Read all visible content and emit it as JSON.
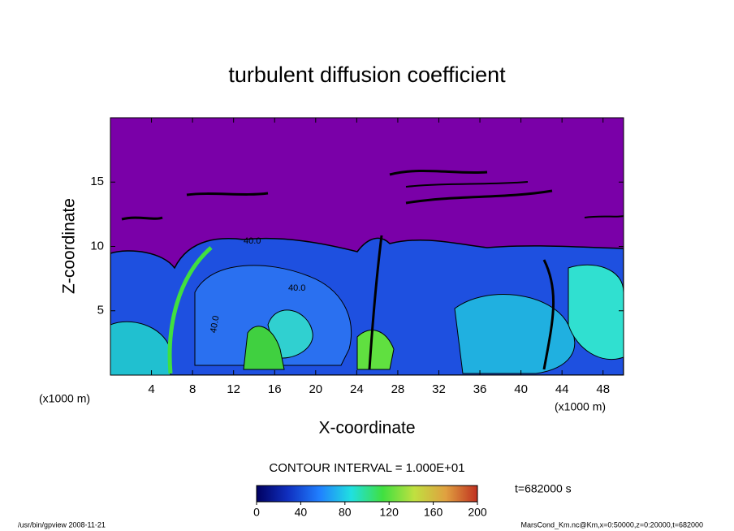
{
  "chart_data": {
    "type": "contour",
    "title": "turbulent diffusion coefficient",
    "x_label": "X-coordinate",
    "y_label": "Z-coordinate",
    "x_unit": "(x1000 m)",
    "y_unit": "(x1000 m)",
    "xlim": [
      0,
      50
    ],
    "xticks": [
      4,
      8,
      12,
      16,
      20,
      24,
      28,
      32,
      36,
      40,
      44,
      48
    ],
    "ylim": [
      0,
      20
    ],
    "yticks": [
      5,
      10,
      15
    ],
    "contour_labels": [
      "40.0",
      "40.0",
      "40.0"
    ],
    "contour_interval": "CONTOUR INTERVAL = 1.000E+01",
    "colorbar": {
      "lim": [
        0,
        200
      ],
      "ticks": [
        0,
        40,
        80,
        120,
        160,
        200
      ],
      "colors": [
        "#000060",
        "#1030c0",
        "#2080ff",
        "#20e0e0",
        "#40e040",
        "#c0e040",
        "#e0a040",
        "#c03020"
      ]
    },
    "time_label": "t=682000 s",
    "footer_left": "/usr/bin/gpview  2008-11-21",
    "footer_right": "MarsCond_Km.nc@Km,x=0:50000,z=0:20000,t=682000"
  }
}
